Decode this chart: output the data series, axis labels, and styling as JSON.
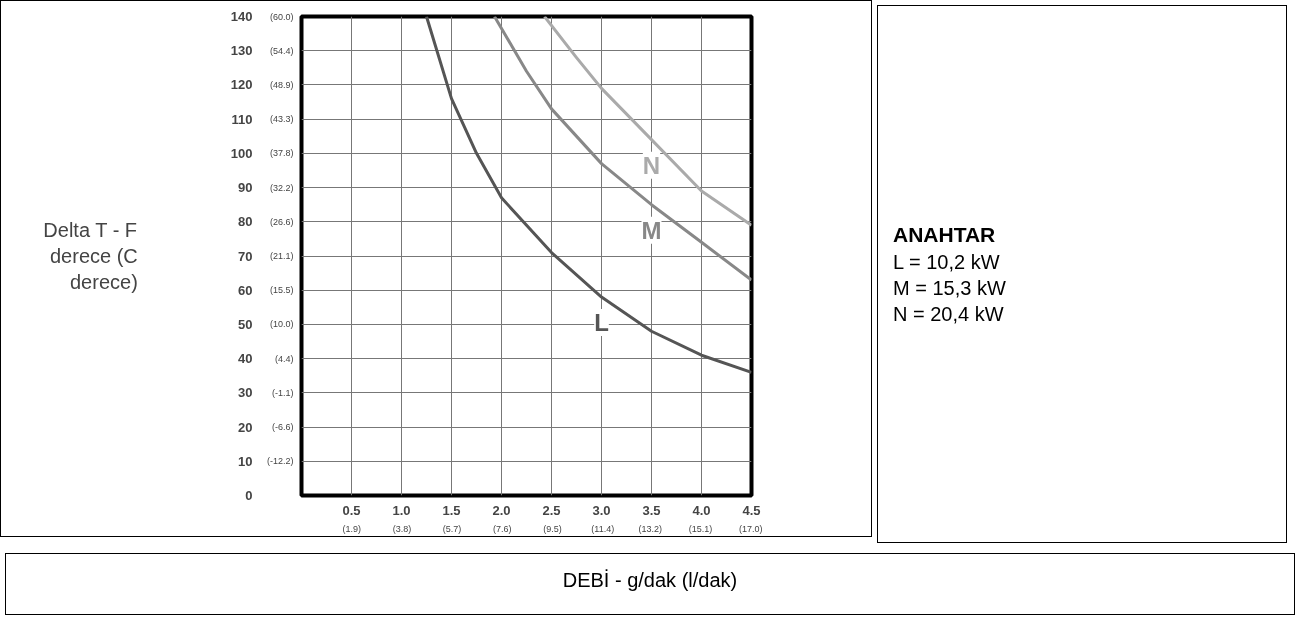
{
  "chart_data": {
    "type": "line",
    "xlabel": "DEBİ  -  g/dak  (l/dak)",
    "ylabel": "Delta T - F derece (C derece)",
    "xlim": [
      0,
      4.5
    ],
    "ylim": [
      0,
      140
    ],
    "xticks": [
      {
        "value": 0,
        "label": null
      },
      0.5,
      {
        "value": 1,
        "label": "1.0"
      },
      1.5,
      {
        "value": 2,
        "label": "2.0"
      },
      2.5,
      {
        "value": 3,
        "label": "3.0"
      },
      3.5,
      {
        "value": 4,
        "label": "4.0"
      },
      4.5
    ],
    "yticks": [
      0,
      10,
      20,
      30,
      40,
      50,
      60,
      70,
      80,
      90,
      100,
      110,
      120,
      130,
      140
    ],
    "x2lim": [
      0,
      17.03
    ],
    "x2ticks": [
      {
        "value": 1.9,
        "label": "(1.9)"
      },
      {
        "value": 3.8,
        "label": "(3.8)"
      },
      {
        "value": 5.7,
        "label": "(5.7)"
      },
      {
        "value": 7.6,
        "label": "(7.6)"
      },
      {
        "value": 9.5,
        "label": "(9.5)"
      },
      {
        "value": 11.4,
        "label": "(11.4)"
      },
      {
        "value": 13.2,
        "label": "(13.2)"
      },
      {
        "value": 15.1,
        "label": "(15.1)"
      },
      {
        "value": 17.0,
        "label": "(17.0)"
      }
    ],
    "y2lim": [
      -17.8,
      60
    ],
    "y2ticks": [
      {
        "value": -12.2,
        "label": "(-12.2)"
      },
      {
        "value": -6.6,
        "label": "(-6.6)"
      },
      {
        "value": -1.1,
        "label": "(-1.1)"
      },
      {
        "value": 4.4,
        "label": "(4.4)"
      },
      {
        "value": 10.0,
        "label": "(10.0)"
      },
      {
        "value": 15.5,
        "label": "(15.5)"
      },
      {
        "value": 21.1,
        "label": "(21.1)"
      },
      {
        "value": 26.6,
        "label": "(26.6)"
      },
      {
        "value": 32.2,
        "label": "(32.2)"
      },
      {
        "value": 37.8,
        "label": "(37.8)"
      },
      {
        "value": 43.3,
        "label": "(43.3)"
      },
      {
        "value": 48.9,
        "label": "(48.9)"
      },
      {
        "value": 54.4,
        "label": "(54.4)"
      },
      {
        "value": 60.0,
        "label": "(60.0)"
      }
    ],
    "grid": true,
    "marker": "none",
    "line_style": "solid",
    "series": [
      {
        "name": "L",
        "color": "#555555",
        "x": [
          1.25,
          1.5,
          1.75,
          2.0,
          2.5,
          3.0,
          3.5,
          4.0,
          4.5
        ],
        "values": [
          140,
          116,
          100,
          87,
          71,
          58,
          48,
          41,
          36
        ]
      },
      {
        "name": "M",
        "color": "#888888",
        "x": [
          1.93,
          2.25,
          2.5,
          3.0,
          3.5,
          4.0,
          4.5
        ],
        "values": [
          140,
          124,
          113,
          97,
          85,
          74,
          63
        ]
      },
      {
        "name": "N",
        "color": "#aaaaaa",
        "x": [
          2.43,
          2.75,
          3.0,
          3.5,
          4.0,
          4.5
        ],
        "values": [
          140,
          128,
          119,
          104,
          89,
          79
        ]
      }
    ],
    "annotations": [
      "ANAHTAR",
      "L = 10,2 kW",
      "M = 15,3 kW",
      "N = 20,4 kW"
    ]
  }
}
